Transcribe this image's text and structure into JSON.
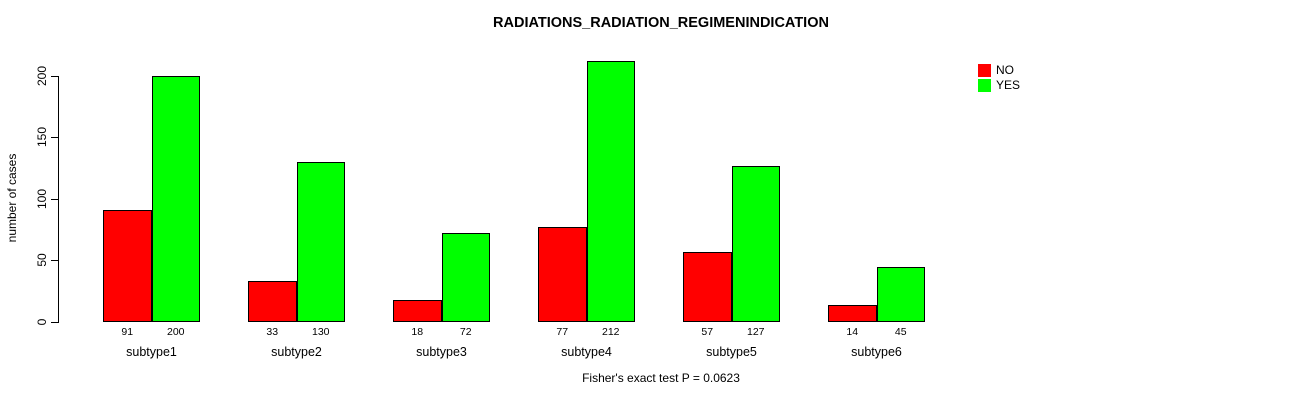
{
  "chart_data": {
    "type": "bar",
    "title": "RADIATIONS_RADIATION_REGIMENINDICATION",
    "ylabel": "number of cases",
    "xlabel": "",
    "ylim": [
      0,
      200
    ],
    "yticks": [
      0,
      50,
      100,
      150,
      200
    ],
    "categories": [
      "subtype1",
      "subtype2",
      "subtype3",
      "subtype4",
      "subtype5",
      "subtype6"
    ],
    "series": [
      {
        "name": "NO",
        "color": "#ff0000",
        "values": [
          91,
          33,
          18,
          77,
          57,
          14
        ]
      },
      {
        "name": "YES",
        "color": "#00ff00",
        "values": [
          200,
          130,
          72,
          212,
          127,
          45
        ]
      }
    ],
    "bar_value_labels": true,
    "grid": false,
    "legend_position": "top-right",
    "annotation": "Fisher's exact test P = 0.0623"
  },
  "colors": {
    "background": "#ffffff",
    "axis": "#000000",
    "text": "#000000"
  }
}
